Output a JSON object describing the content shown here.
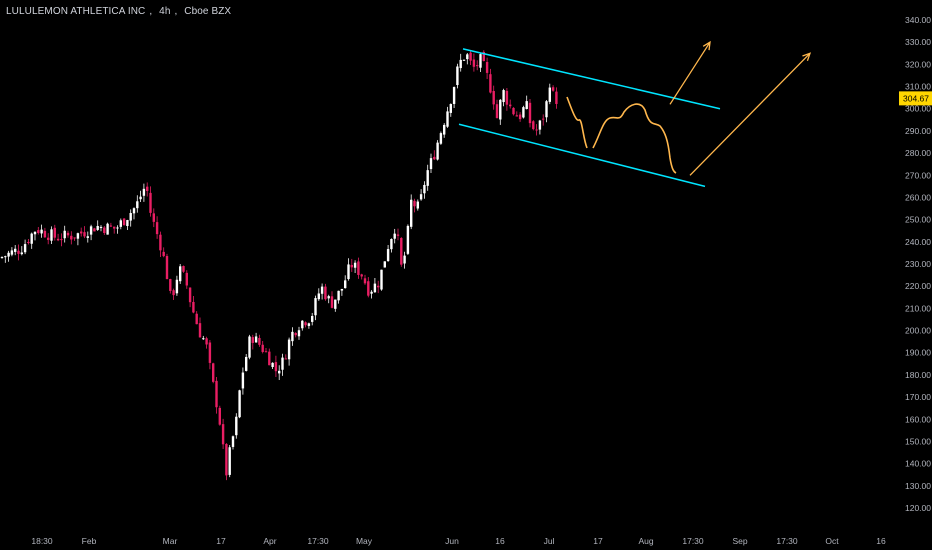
{
  "header": {
    "symbol": "LULULEMON ATHLETICA INC",
    "interval": "4h",
    "exchange": "Cboe BZX"
  },
  "colors": {
    "background": "#000000",
    "text": "#b2b5be",
    "up_candle": "#ffffff",
    "down_candle": "#e91e63",
    "channel": "#00e5ff",
    "projection": "#ffb74d",
    "price_label_bg": "#ffd600"
  },
  "chart_data": {
    "type": "candlestick",
    "title": "LULULEMON ATHLETICA INC, 4h, Cboe BZX",
    "ylim": [
      115,
      345
    ],
    "y_ticks": [
      "340.00",
      "330.00",
      "320.00",
      "310.00",
      "300.00",
      "290.00",
      "280.00",
      "270.00",
      "260.00",
      "250.00",
      "240.00",
      "230.00",
      "220.00",
      "210.00",
      "200.00",
      "190.00",
      "180.00",
      "170.00",
      "160.00",
      "150.00",
      "140.00",
      "130.00",
      "120.00"
    ],
    "x_ticks": [
      "18:30",
      "Feb",
      "Mar",
      "17",
      "Apr",
      "17:30",
      "May",
      "Jun",
      "16",
      "Jul",
      "17",
      "Aug",
      "17:30",
      "Sep",
      "17:30",
      "Oct",
      "16"
    ],
    "last_price": "304.67",
    "price_series_approx": [
      [
        0,
        233
      ],
      [
        20,
        237
      ],
      [
        35,
        246
      ],
      [
        55,
        242
      ],
      [
        75,
        243
      ],
      [
        95,
        247
      ],
      [
        115,
        246
      ],
      [
        135,
        256
      ],
      [
        145,
        266
      ],
      [
        150,
        252
      ],
      [
        160,
        238
      ],
      [
        165,
        228
      ],
      [
        170,
        213
      ],
      [
        178,
        228
      ],
      [
        185,
        222
      ],
      [
        190,
        212
      ],
      [
        198,
        200
      ],
      [
        205,
        194
      ],
      [
        210,
        180
      ],
      [
        218,
        162
      ],
      [
        225,
        135
      ],
      [
        230,
        148
      ],
      [
        235,
        158
      ],
      [
        240,
        178
      ],
      [
        250,
        198
      ],
      [
        258,
        194
      ],
      [
        265,
        190
      ],
      [
        275,
        182
      ],
      [
        282,
        186
      ],
      [
        290,
        198
      ],
      [
        300,
        204
      ],
      [
        310,
        206
      ],
      [
        320,
        220
      ],
      [
        330,
        212
      ],
      [
        340,
        218
      ],
      [
        350,
        230
      ],
      [
        360,
        226
      ],
      [
        368,
        218
      ],
      [
        378,
        222
      ],
      [
        388,
        240
      ],
      [
        395,
        248
      ],
      [
        400,
        228
      ],
      [
        405,
        236
      ],
      [
        410,
        258
      ],
      [
        418,
        255
      ],
      [
        425,
        270
      ],
      [
        432,
        278
      ],
      [
        440,
        290
      ],
      [
        450,
        305
      ],
      [
        458,
        320
      ],
      [
        465,
        325
      ],
      [
        472,
        318
      ],
      [
        480,
        322
      ],
      [
        485,
        316
      ],
      [
        492,
        306
      ],
      [
        496,
        296
      ],
      [
        502,
        308
      ],
      [
        510,
        300
      ],
      [
        518,
        296
      ],
      [
        525,
        302
      ],
      [
        530,
        292
      ],
      [
        536,
        290
      ],
      [
        540,
        294
      ],
      [
        545,
        300
      ],
      [
        548,
        314
      ],
      [
        552,
        306
      ],
      [
        556,
        304
      ]
    ],
    "annotations": {
      "channel_upper": [
        [
          463,
          327
        ],
        [
          720,
          300
        ]
      ],
      "channel_lower": [
        [
          459,
          293
        ],
        [
          705,
          265
        ]
      ],
      "projection_path": "wavy decline within channel",
      "arrow_1": [
        [
          670,
          302
        ],
        [
          710,
          330
        ]
      ],
      "arrow_2": [
        [
          690,
          270
        ],
        [
          810,
          325
        ]
      ]
    }
  }
}
